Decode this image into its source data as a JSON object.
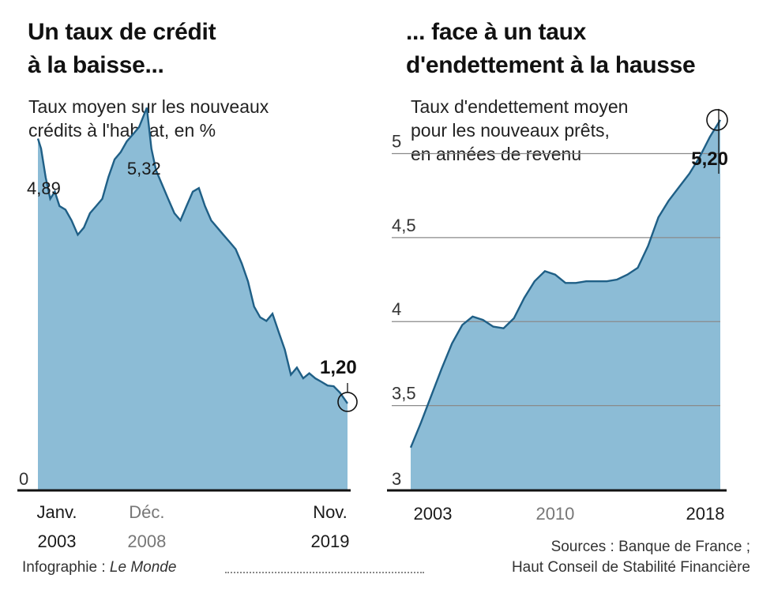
{
  "chart_data": [
    {
      "type": "area",
      "title_lines": [
        "Un taux de crédit",
        "à la baisse..."
      ],
      "subtitle_lines": [
        "Taux moyen sur les nouveaux",
        "crédits à l'habitat, en %"
      ],
      "ylim": [
        0,
        5.5
      ],
      "y_ticks": [
        "0"
      ],
      "x_labels": [
        {
          "month": "Janv.",
          "year": "2003",
          "t": 2003.0,
          "muted": false
        },
        {
          "month": "Déc.",
          "year": "2008",
          "t": 2008.92,
          "muted": true
        },
        {
          "month": "Nov.",
          "year": "2019",
          "t": 2019.83,
          "muted": false
        }
      ],
      "series": [
        {
          "x": [
            2003.0,
            2003.17,
            2003.42,
            2003.67,
            2003.92,
            2004.17,
            2004.5,
            2004.83,
            2005.17,
            2005.5,
            2005.83,
            2006.17,
            2006.5,
            2006.83,
            2007.17,
            2007.5,
            2007.83,
            2008.17,
            2008.5,
            2008.92,
            2009.17,
            2009.42,
            2009.75,
            2010.08,
            2010.42,
            2010.75,
            2011.08,
            2011.42,
            2011.75,
            2012.08,
            2012.42,
            2012.75,
            2013.08,
            2013.42,
            2013.75,
            2014.08,
            2014.42,
            2014.75,
            2015.08,
            2015.42,
            2015.75,
            2016.08,
            2016.42,
            2016.75,
            2017.08,
            2017.42,
            2017.75,
            2018.08,
            2018.42,
            2018.75,
            2019.08,
            2019.42,
            2019.83
          ],
          "values": [
            4.89,
            4.75,
            4.35,
            4.05,
            4.15,
            3.95,
            3.9,
            3.75,
            3.55,
            3.65,
            3.85,
            3.95,
            4.05,
            4.35,
            4.6,
            4.7,
            4.85,
            4.95,
            5.05,
            5.32,
            4.75,
            4.45,
            4.25,
            4.05,
            3.85,
            3.75,
            3.95,
            4.15,
            4.2,
            3.95,
            3.75,
            3.65,
            3.55,
            3.45,
            3.35,
            3.15,
            2.9,
            2.55,
            2.4,
            2.35,
            2.45,
            2.2,
            1.95,
            1.6,
            1.7,
            1.55,
            1.62,
            1.55,
            1.5,
            1.45,
            1.44,
            1.35,
            1.2
          ]
        }
      ],
      "annotations": [
        {
          "label": "4,89",
          "bold": false
        },
        {
          "label": "5,32",
          "bold": false
        },
        {
          "label": "1,20",
          "bold": true
        }
      ],
      "grid": false
    },
    {
      "type": "area",
      "title_lines": [
        "... face à un taux",
        "d'endettement à la hausse"
      ],
      "subtitle_lines": [
        "Taux d'endettement moyen",
        "pour les nouveaux prêts,",
        "en années de revenu"
      ],
      "ylim": [
        3,
        5.35
      ],
      "y_ticks": [
        "3",
        "3,5",
        "4",
        "4,5",
        "5"
      ],
      "y_tick_values": [
        3,
        3.5,
        4,
        4.5,
        5
      ],
      "x_labels": [
        {
          "year": "2003",
          "t": 2003,
          "muted": false
        },
        {
          "year": "2010",
          "t": 2010,
          "muted": true
        },
        {
          "year": "2018",
          "t": 2018,
          "muted": false
        }
      ],
      "series": [
        {
          "x": [
            2003,
            2003.5,
            2004,
            2004.5,
            2005,
            2005.5,
            2006,
            2006.5,
            2007,
            2007.5,
            2008,
            2008.5,
            2009,
            2009.5,
            2010,
            2010.5,
            2011,
            2011.5,
            2012,
            2012.5,
            2013,
            2013.5,
            2014,
            2014.5,
            2015,
            2015.5,
            2016,
            2016.5,
            2017,
            2017.5,
            2018
          ],
          "values": [
            3.25,
            3.4,
            3.56,
            3.72,
            3.87,
            3.98,
            4.03,
            4.01,
            3.97,
            3.96,
            4.02,
            4.14,
            4.24,
            4.3,
            4.28,
            4.23,
            4.23,
            4.24,
            4.24,
            4.24,
            4.25,
            4.28,
            4.32,
            4.45,
            4.62,
            4.72,
            4.8,
            4.88,
            4.98,
            5.1,
            5.2
          ]
        }
      ],
      "annotations": [
        {
          "label": "5,20",
          "bold": true
        }
      ],
      "grid": true
    }
  ],
  "credits": {
    "infographie_prefix": "Infographie : ",
    "infographie_name": "Le Monde",
    "sources_line1": "Sources : Banque de France ;",
    "sources_line2": "Haut Conseil de Stabilité Financière"
  },
  "colors": {
    "fill": "#8cbcd6",
    "line": "#1f5f86",
    "axis": "#111111",
    "grid": "#8a8a8a"
  }
}
